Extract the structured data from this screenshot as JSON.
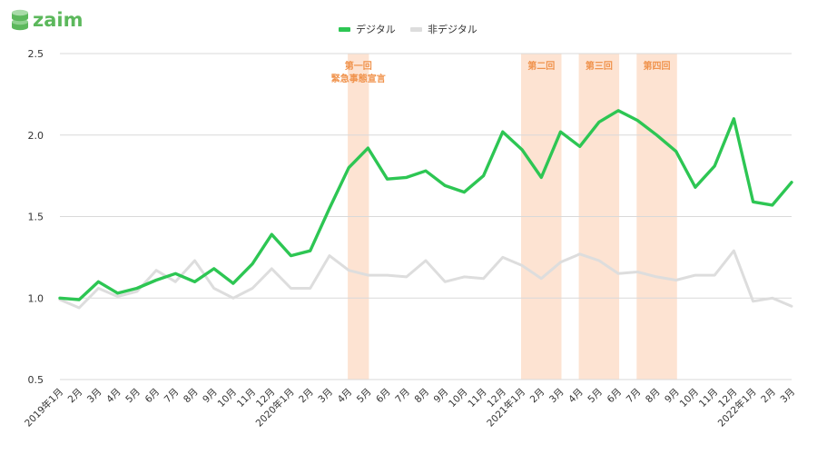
{
  "brand": {
    "name": "zaim",
    "color": "#5cb85c"
  },
  "chart_data": {
    "type": "line",
    "ylim": [
      0.5,
      2.5
    ],
    "yticks": [
      "0.5",
      "1.0",
      "1.5",
      "2.0",
      "2.5"
    ],
    "ytick_values": [
      0.5,
      1.0,
      1.5,
      2.0,
      2.5
    ],
    "grid": true,
    "legend_position": "top-center",
    "categories": [
      "2019年1月",
      "2月",
      "3月",
      "4月",
      "5月",
      "6月",
      "7月",
      "8月",
      "9月",
      "10月",
      "11月",
      "12月",
      "2020年1月",
      "2月",
      "3月",
      "4月",
      "5月",
      "6月",
      "7月",
      "8月",
      "9月",
      "10月",
      "11月",
      "12月",
      "2021年1月",
      "2月",
      "3月",
      "4月",
      "5月",
      "6月",
      "7月",
      "8月",
      "9月",
      "10月",
      "11月",
      "12月",
      "2022年1月",
      "2月",
      "3月"
    ],
    "series": [
      {
        "name": "デジタル",
        "color": "#2dc653",
        "values": [
          1.0,
          0.99,
          1.1,
          1.03,
          1.06,
          1.11,
          1.15,
          1.1,
          1.18,
          1.09,
          1.21,
          1.39,
          1.26,
          1.29,
          1.55,
          1.8,
          1.92,
          1.73,
          1.74,
          1.78,
          1.69,
          1.65,
          1.75,
          2.02,
          1.91,
          1.74,
          2.02,
          1.93,
          2.08,
          2.15,
          2.09,
          2.0,
          1.9,
          1.68,
          1.81,
          2.1,
          1.59,
          1.57,
          1.71
        ]
      },
      {
        "name": "非デジタル",
        "color": "#dddddd",
        "values": [
          0.99,
          0.94,
          1.06,
          1.01,
          1.04,
          1.17,
          1.1,
          1.23,
          1.06,
          1.0,
          1.06,
          1.18,
          1.06,
          1.06,
          1.26,
          1.17,
          1.14,
          1.14,
          1.13,
          1.23,
          1.1,
          1.13,
          1.12,
          1.25,
          1.2,
          1.12,
          1.22,
          1.27,
          1.23,
          1.15,
          1.16,
          1.13,
          1.11,
          1.14,
          1.14,
          1.29,
          0.98,
          1.0,
          0.95
        ]
      }
    ],
    "bands": [
      {
        "label_lines": [
          "第一回",
          "緊急事態宣言"
        ],
        "start": 15,
        "end": 16
      },
      {
        "label_lines": [
          "第二回"
        ],
        "start": 24,
        "end": 26
      },
      {
        "label_lines": [
          "第三回"
        ],
        "start": 27,
        "end": 29
      },
      {
        "label_lines": [
          "第四回"
        ],
        "start": 30,
        "end": 32
      }
    ],
    "band_color": "#fde3d2",
    "band_label_color": "#f0934d"
  }
}
